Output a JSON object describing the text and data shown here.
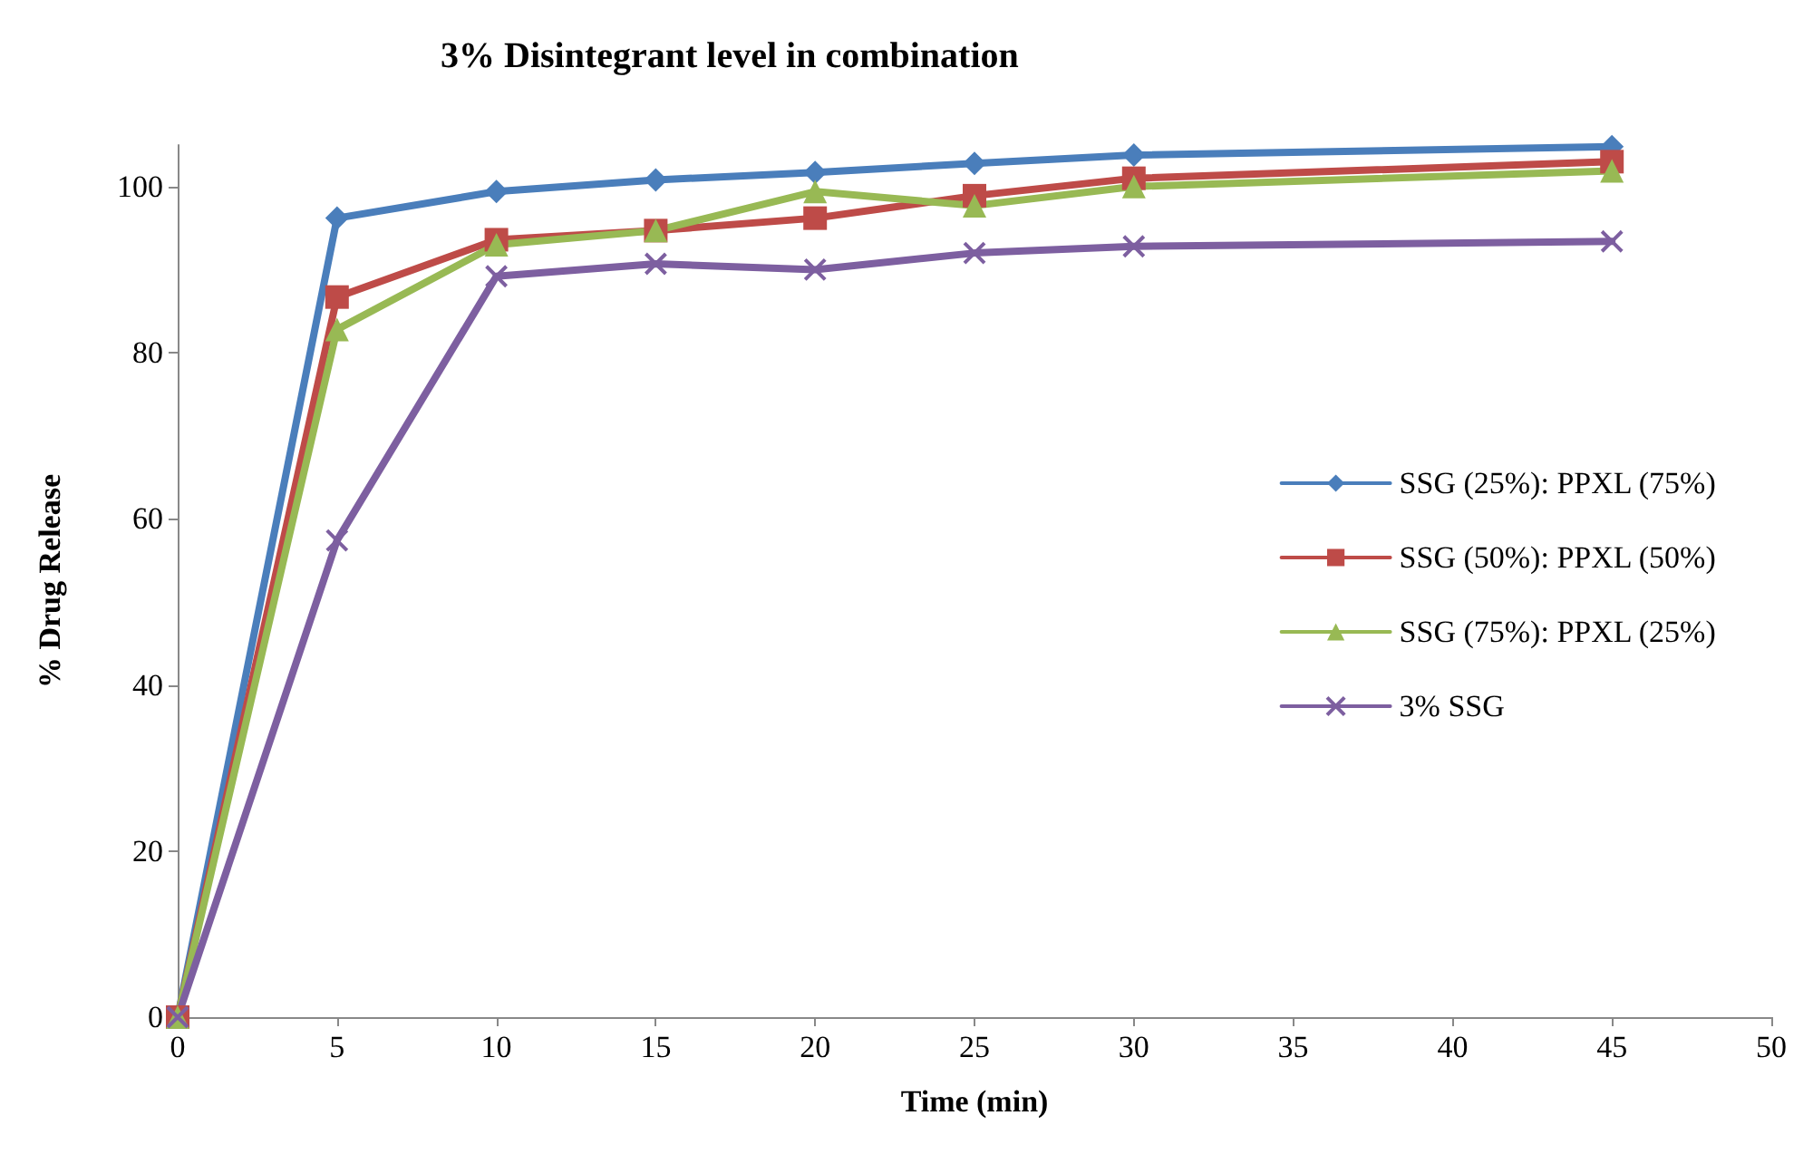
{
  "chart_data": {
    "type": "line",
    "title": "3% Disintegrant level in combination",
    "xlabel": "Time (min)",
    "ylabel": "% Drug Release",
    "x": [
      0,
      5,
      10,
      15,
      20,
      25,
      30,
      45
    ],
    "series": [
      {
        "name": "SSG (25%): PPXL (75%)",
        "color": "#4a7ebb",
        "marker": "diamond",
        "values": [
          0,
          96.2,
          99.4,
          100.8,
          101.7,
          102.8,
          103.8,
          104.8
        ]
      },
      {
        "name": "SSG (50%): PPXL (50%)",
        "color": "#be4b48",
        "marker": "square",
        "values": [
          0,
          86.7,
          93.6,
          94.7,
          96.2,
          98.9,
          101,
          103
        ]
      },
      {
        "name": "SSG (75%): PPXL (25%)",
        "color": "#98b954",
        "marker": "triangle",
        "values": [
          0,
          82.8,
          93,
          94.7,
          99.4,
          97.7,
          100,
          101.9
        ]
      },
      {
        "name": "3% SSG",
        "color": "#7d5fa0",
        "marker": "cross",
        "values": [
          0,
          57.4,
          89.2,
          90.7,
          90,
          92,
          92.8,
          93.4
        ]
      }
    ],
    "xlim": [
      0,
      50
    ],
    "xticks": [
      0,
      5,
      10,
      15,
      20,
      25,
      30,
      35,
      40,
      45,
      50
    ],
    "ylim": [
      0,
      105
    ],
    "yticks": [
      0,
      20,
      40,
      60,
      80,
      100
    ],
    "grid": false,
    "legend": "right",
    "line_style": "solid"
  }
}
